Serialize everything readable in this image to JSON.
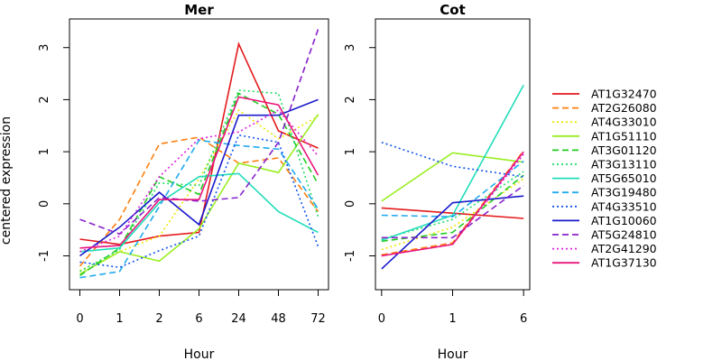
{
  "chart_data": {
    "type": "line",
    "ylabel": "centered expression",
    "ylim": [
      -1.65,
      3.55
    ],
    "yticks": [
      -1,
      0,
      1,
      2,
      3
    ],
    "legend_position": "right",
    "panels": [
      {
        "title": "Mer",
        "xlabel": "Hour",
        "x": [
          "0",
          "1",
          "2",
          "6",
          "24",
          "48",
          "72"
        ],
        "series": [
          {
            "values": [
              -0.68,
              -0.78,
              -0.62,
              -0.55,
              3.07,
              1.4,
              1.07
            ]
          },
          {
            "values": [
              -1.2,
              -0.3,
              1.15,
              1.28,
              0.78,
              0.88,
              -0.15
            ]
          },
          {
            "values": [
              -1.28,
              -0.92,
              -0.62,
              0.48,
              1.8,
              1.25,
              1.68
            ]
          },
          {
            "values": [
              -1.35,
              -0.92,
              -1.1,
              -0.48,
              0.78,
              0.6,
              1.72
            ]
          },
          {
            "values": [
              -1.38,
              -0.85,
              0.52,
              0.18,
              2.12,
              1.72,
              0.38
            ]
          },
          {
            "values": [
              -1.3,
              -0.88,
              0.4,
              0.35,
              2.18,
              2.12,
              -0.25
            ]
          },
          {
            "values": [
              -0.92,
              -0.85,
              0.02,
              0.52,
              0.58,
              -0.15,
              -0.55
            ]
          },
          {
            "values": [
              -1.42,
              -1.3,
              -0.05,
              1.22,
              1.12,
              1.05,
              -0.1
            ]
          },
          {
            "values": [
              -1.12,
              -1.22,
              -0.9,
              -0.62,
              1.32,
              1.18,
              -0.82
            ]
          },
          {
            "values": [
              -1.0,
              -0.45,
              0.22,
              -0.4,
              1.7,
              1.7,
              2.0
            ]
          },
          {
            "values": [
              -0.3,
              -0.58,
              0.12,
              0.05,
              0.12,
              1.18,
              3.35
            ]
          },
          {
            "values": [
              -0.92,
              -0.62,
              0.52,
              1.25,
              1.38,
              1.8,
              0.92
            ]
          },
          {
            "values": [
              -0.85,
              -0.8,
              0.08,
              0.08,
              2.05,
              1.9,
              0.55
            ]
          }
        ]
      },
      {
        "title": "Cot",
        "xlabel": "Hour",
        "x": [
          "0",
          "1",
          "6"
        ],
        "series": [
          {
            "values": [
              -0.08,
              -0.18,
              -0.28
            ]
          },
          {
            "values": [
              -0.98,
              -0.75,
              1.02
            ]
          },
          {
            "values": [
              -0.88,
              -0.45,
              0.48
            ]
          },
          {
            "values": [
              0.05,
              0.98,
              0.8
            ]
          },
          {
            "values": [
              -0.72,
              -0.55,
              0.55
            ]
          },
          {
            "values": [
              -0.68,
              -0.3,
              0.62
            ]
          },
          {
            "values": [
              -0.7,
              -0.22,
              2.28
            ]
          },
          {
            "values": [
              -0.22,
              -0.25,
              0.82
            ]
          },
          {
            "values": [
              1.18,
              0.72,
              0.52
            ]
          },
          {
            "values": [
              -1.25,
              0.02,
              0.15
            ]
          },
          {
            "values": [
              -0.65,
              -0.65,
              0.35
            ]
          },
          {
            "values": [
              -1.0,
              -0.78,
              0.95
            ]
          },
          {
            "values": [
              -1.0,
              -0.78,
              1.0
            ]
          }
        ]
      }
    ],
    "legend": [
      {
        "label": "AT1G32470",
        "color": "#e41a1c",
        "dash": "solid"
      },
      {
        "label": "AT2G26080",
        "color": "#ff7f0e",
        "dash": "dashed"
      },
      {
        "label": "AT4G33010",
        "color": "#eee800",
        "dash": "dotted"
      },
      {
        "label": "AT1G51110",
        "color": "#99ee22",
        "dash": "solid"
      },
      {
        "label": "AT3G01120",
        "color": "#22cc22",
        "dash": "dashed"
      },
      {
        "label": "AT3G13110",
        "color": "#22dd66",
        "dash": "dotted"
      },
      {
        "label": "AT5G65010",
        "color": "#22ddbb",
        "dash": "solid"
      },
      {
        "label": "AT3G19480",
        "color": "#22aaee",
        "dash": "dashed"
      },
      {
        "label": "AT4G33510",
        "color": "#1155ee",
        "dash": "dotted"
      },
      {
        "label": "AT1G10060",
        "color": "#1a1acc",
        "dash": "solid"
      },
      {
        "label": "AT5G24810",
        "color": "#8822cc",
        "dash": "dashed"
      },
      {
        "label": "AT2G41290",
        "color": "#dd22dd",
        "dash": "dotted"
      },
      {
        "label": "AT1G37130",
        "color": "#e8157a",
        "dash": "solid"
      }
    ]
  }
}
